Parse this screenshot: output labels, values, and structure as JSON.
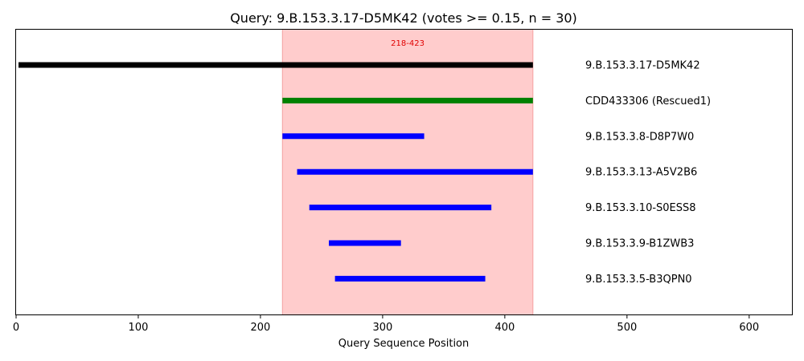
{
  "chart_data": {
    "type": "range_bar",
    "title": "Query: 9.B.153.3.17-D5MK42 (votes >= 0.15, n = 30)",
    "xlabel": "Query Sequence Position",
    "ylabel": "",
    "xlim": [
      0,
      635
    ],
    "xticks": [
      0,
      100,
      200,
      300,
      400,
      500,
      600
    ],
    "grid": false,
    "highlight_region": {
      "start": 218,
      "end": 423,
      "label": "218-423",
      "color": "#ffcccc",
      "label_color": "#e00000"
    },
    "segments": [
      {
        "label": "9.B.153.3.17-D5MK42",
        "start": 2,
        "end": 423,
        "color": "#000000"
      },
      {
        "label": "CDD433306 (Rescued1)",
        "start": 218,
        "end": 423,
        "color": "#008000"
      },
      {
        "label": "9.B.153.3.8-D8P7W0",
        "start": 218,
        "end": 334,
        "color": "#0000ff"
      },
      {
        "label": "9.B.153.3.13-A5V2B6",
        "start": 230,
        "end": 423,
        "color": "#0000ff"
      },
      {
        "label": "9.B.153.3.10-S0ESS8",
        "start": 240,
        "end": 389,
        "color": "#0000ff"
      },
      {
        "label": "9.B.153.3.9-B1ZWB3",
        "start": 256,
        "end": 315,
        "color": "#0000ff"
      },
      {
        "label": "9.B.153.3.5-B3QPN0",
        "start": 261,
        "end": 384,
        "color": "#0000ff"
      }
    ]
  }
}
